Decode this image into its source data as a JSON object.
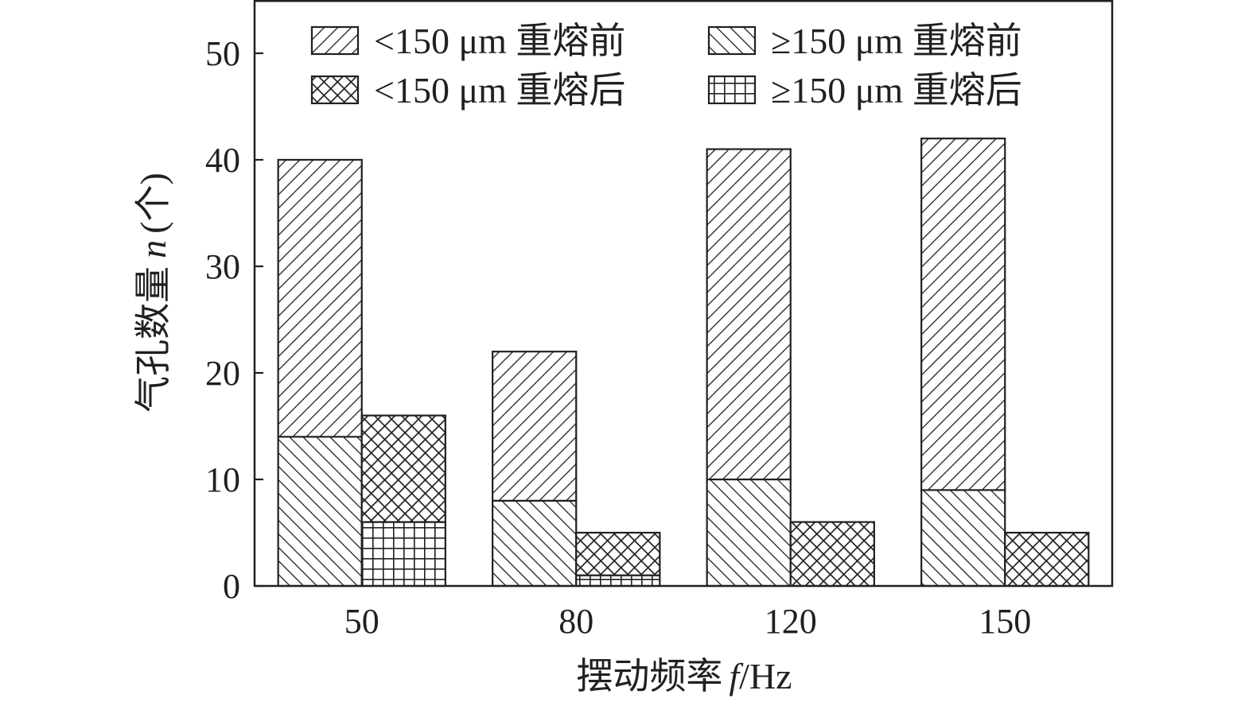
{
  "chart_data": {
    "type": "bar",
    "stacked": true,
    "xlabel_prefix": "摆动频率",
    "xlabel_var": "f",
    "xlabel_unit": "/Hz",
    "ylabel_prefix": "气孔数量",
    "ylabel_var": "n",
    "ylabel_unit": "(个)",
    "categories": [
      "50",
      "80",
      "120",
      "150"
    ],
    "ylim": [
      0,
      55
    ],
    "yticks": [
      0,
      10,
      20,
      30,
      40,
      50
    ],
    "grid": false,
    "legend_position": "top",
    "groups": [
      {
        "name": "重熔前",
        "stack": [
          {
            "series": "≥150 μm 重熔前",
            "values": [
              14,
              8,
              10,
              9
            ]
          },
          {
            "series": "<150 μm 重熔前",
            "values": [
              26,
              14,
              31,
              33
            ]
          }
        ],
        "totals": [
          40,
          22,
          41,
          42
        ]
      },
      {
        "name": "重熔后",
        "stack": [
          {
            "series": "≥150 μm 重熔后",
            "values": [
              6,
              1,
              0,
              0
            ]
          },
          {
            "series": "<150 μm 重熔后",
            "values": [
              10,
              4,
              6,
              5
            ]
          }
        ],
        "totals": [
          16,
          5,
          6,
          5
        ]
      }
    ],
    "legend": [
      {
        "label": "<150 μm 重熔前",
        "pattern": "diag-fwd"
      },
      {
        "label": "≥150 μm 重熔前",
        "pattern": "diag-back"
      },
      {
        "label": "<150 μm 重熔后",
        "pattern": "crosshatch"
      },
      {
        "label": "≥150 μm 重熔后",
        "pattern": "grid"
      }
    ],
    "colors": {
      "ink": "#231f20",
      "background": "#ffffff"
    }
  }
}
